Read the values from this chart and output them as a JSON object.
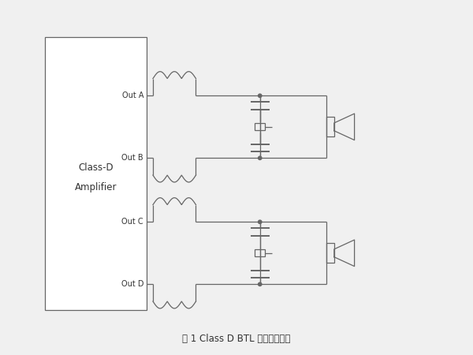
{
  "title": "图 1 Class D BTL 输出应用框图",
  "bg_color": "#f0f0f0",
  "line_color": "#666666",
  "box_fill": "#ffffff",
  "text_color": "#333333",
  "fig_width": 6.0,
  "fig_height": 4.5,
  "amp_label1": "Class-D",
  "amp_label2": "Amplifier",
  "out_labels": [
    "Out A",
    "Out B",
    "Out C",
    "Out D"
  ]
}
